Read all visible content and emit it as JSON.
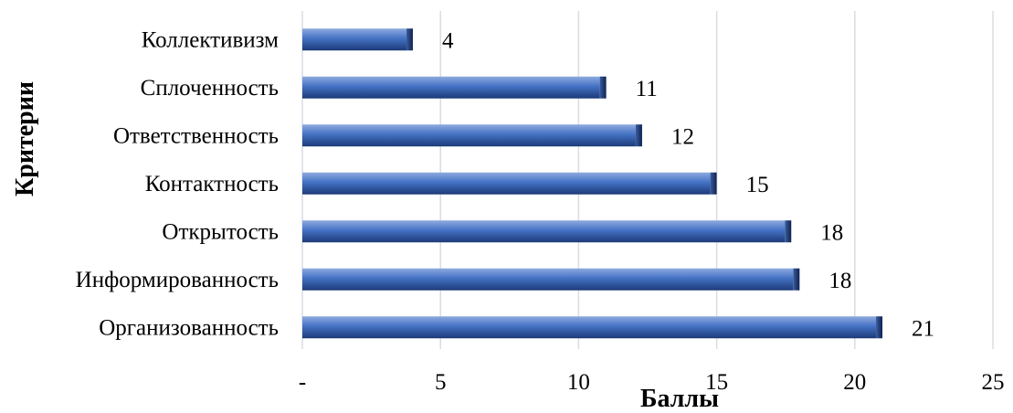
{
  "chart_data": {
    "type": "bar",
    "orientation": "horizontal",
    "title": "",
    "xlabel": "Баллы",
    "ylabel": "Критерии",
    "categories": [
      "Организованность",
      "Информированность",
      "Открытость",
      "Контактность",
      "Ответственность",
      "Сплоченность",
      "Коллективизм"
    ],
    "values": [
      21,
      18,
      17.7,
      15,
      12.3,
      11,
      4
    ],
    "data_labels": [
      "21",
      "18",
      "18",
      "15",
      "12",
      "11",
      "4"
    ],
    "xlim": [
      0,
      25
    ],
    "x_ticks": [
      0,
      5,
      10,
      15,
      20,
      25
    ],
    "x_tick_labels": [
      "-",
      "5",
      "10",
      "15",
      "20",
      "25"
    ],
    "grid": "vertical",
    "legend": "none",
    "bar_color": "#4472c4",
    "bar_color_dark": "#1c3a78",
    "bar_color_light": "#8eaadf",
    "grid_color": "#d9dde3"
  }
}
